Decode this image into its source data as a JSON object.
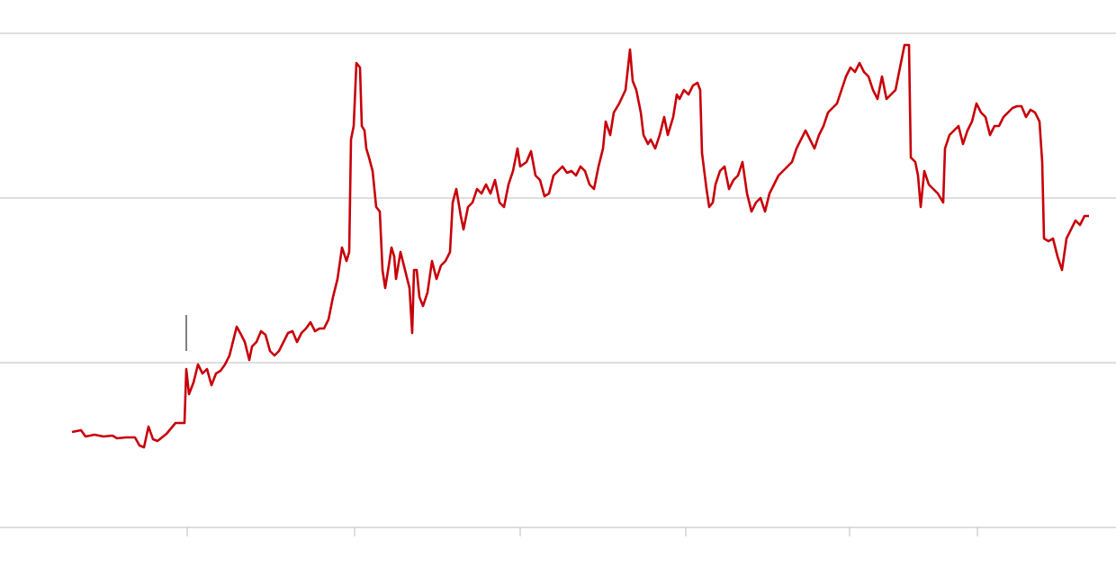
{
  "chart_data": {
    "type": "line",
    "color": "#c8000a",
    "grid": true,
    "xlim": [
      0,
      1240
    ],
    "xticks": [
      208,
      394,
      578,
      762,
      944,
      1086
    ],
    "ylim": [
      0,
      549
    ],
    "yticks": [
      0,
      183,
      366,
      549
    ],
    "x": [
      80,
      90,
      95,
      105,
      115,
      125,
      130,
      140,
      150,
      155,
      160,
      165,
      170,
      175,
      185,
      195,
      205,
      207,
      210,
      215,
      220,
      225,
      230,
      235,
      240,
      245,
      250,
      255,
      260,
      263,
      268,
      272,
      277,
      280,
      285,
      290,
      295,
      300,
      305,
      310,
      315,
      320,
      325,
      330,
      335,
      340,
      345,
      350,
      355,
      360,
      365,
      370,
      375,
      380,
      385,
      388,
      390,
      393,
      396,
      400,
      402,
      405,
      407,
      410,
      414,
      418,
      422,
      425,
      428,
      432,
      435,
      438,
      440,
      445,
      450,
      455,
      458,
      460,
      463,
      466,
      470,
      475,
      480,
      485,
      490,
      495,
      500,
      503,
      507,
      512,
      515,
      520,
      525,
      530,
      535,
      540,
      545,
      550,
      555,
      560,
      565,
      570,
      575,
      578,
      585,
      590,
      595,
      600,
      605,
      610,
      615,
      620,
      625,
      630,
      635,
      640,
      645,
      650,
      655,
      660,
      665,
      670,
      673,
      678,
      682,
      688,
      695,
      700,
      703,
      707,
      712,
      715,
      720,
      723,
      728,
      733,
      738,
      742,
      748,
      752,
      755,
      760,
      765,
      770,
      775,
      778,
      780,
      785,
      788,
      792,
      795,
      800,
      805,
      810,
      815,
      820,
      825,
      830,
      835,
      840,
      845,
      850,
      855,
      860,
      865,
      870,
      875,
      880,
      885,
      890,
      895,
      900,
      905,
      910,
      915,
      920,
      925,
      930,
      935,
      940,
      945,
      950,
      955,
      960,
      965,
      970,
      975,
      980,
      985,
      990,
      995,
      1000,
      1005,
      1010,
      1012,
      1017,
      1020,
      1023,
      1027,
      1032,
      1037,
      1042,
      1048,
      1050,
      1055,
      1060,
      1065,
      1070,
      1075,
      1080,
      1085,
      1090,
      1095,
      1100,
      1105,
      1110,
      1115,
      1120,
      1125,
      1130,
      1135,
      1140,
      1145,
      1150,
      1155,
      1158,
      1160,
      1165,
      1170,
      1175,
      1180,
      1185,
      1190,
      1195,
      1200,
      1205,
      1210
    ],
    "values": [
      106,
      108,
      101,
      103,
      101,
      102,
      99,
      100,
      100,
      91,
      89,
      112,
      98,
      96,
      104,
      116,
      116,
      176,
      148,
      161,
      181,
      171,
      176,
      158,
      171,
      174,
      181,
      191,
      211,
      223,
      214,
      206,
      186,
      201,
      206,
      218,
      214,
      196,
      191,
      196,
      206,
      216,
      218,
      206,
      216,
      221,
      228,
      218,
      221,
      221,
      231,
      256,
      276,
      311,
      296,
      306,
      431,
      446,
      516,
      511,
      446,
      441,
      421,
      411,
      396,
      356,
      351,
      286,
      266,
      291,
      311,
      301,
      276,
      306,
      286,
      266,
      216,
      286,
      286,
      256,
      246,
      261,
      296,
      276,
      291,
      296,
      306,
      361,
      376,
      346,
      331,
      356,
      361,
      376,
      371,
      381,
      371,
      386,
      361,
      356,
      381,
      396,
      421,
      401,
      406,
      418,
      391,
      386,
      368,
      371,
      391,
      396,
      401,
      394,
      396,
      391,
      401,
      396,
      381,
      376,
      401,
      421,
      451,
      436,
      461,
      471,
      486,
      531,
      496,
      486,
      461,
      436,
      426,
      431,
      421,
      436,
      456,
      436,
      456,
      481,
      476,
      486,
      481,
      491,
      494,
      486,
      416,
      376,
      356,
      361,
      381,
      396,
      401,
      376,
      386,
      391,
      406,
      371,
      351,
      361,
      366,
      351,
      371,
      381,
      391,
      396,
      401,
      406,
      421,
      431,
      441,
      431,
      421,
      436,
      446,
      461,
      466,
      471,
      486,
      501,
      511,
      506,
      516,
      506,
      501,
      486,
      476,
      501,
      476,
      481,
      486,
      511,
      536,
      536,
      411,
      406,
      391,
      356,
      396,
      381,
      376,
      371,
      361,
      421,
      436,
      441,
      446,
      426,
      441,
      451,
      471,
      461,
      456,
      436,
      446,
      446,
      456,
      461,
      466,
      468,
      468,
      456,
      464,
      461,
      451,
      406,
      321,
      318,
      321,
      301,
      286,
      321,
      331,
      341,
      336,
      346,
      346
    ]
  }
}
